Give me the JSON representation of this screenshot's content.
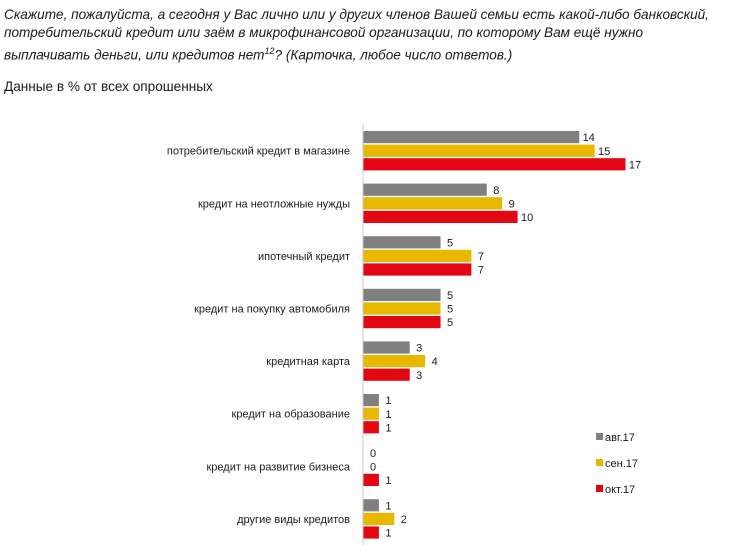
{
  "question": {
    "text": "Скажите, пожалуйста, а сегодня у Вас лично или у других членов Вашей семьи есть какой-либо банковский, потребительский кредит или заём в микрофинансовой организации, по которому Вам ещё нужно выплачивать деньги, или кредитов нет",
    "footnote": "12",
    "tail": "? (Карточка, любое число ответов.)"
  },
  "subtitle": "Данные в % от всех опрошенных",
  "chart_data": {
    "type": "bar",
    "orientation": "horizontal",
    "categories": [
      "потребительский кредит в магазине",
      "кредит на неотложные нужды",
      "ипотечный кредит",
      "кредит на покупку автомобиля",
      "кредитная карта",
      "кредит на образование",
      "кредит на развитие бизнеса",
      "другие виды кредитов"
    ],
    "series": [
      {
        "name": "авг.17",
        "color": "#808080",
        "values": [
          14,
          8,
          5,
          5,
          3,
          1,
          0,
          1
        ]
      },
      {
        "name": "сен.17",
        "color": "#E8B800",
        "values": [
          15,
          9,
          7,
          5,
          4,
          1,
          0,
          2
        ]
      },
      {
        "name": "окт.17",
        "color": "#E30613",
        "values": [
          17,
          10,
          7,
          5,
          3,
          1,
          1,
          1
        ]
      }
    ],
    "xlim": [
      0,
      17
    ],
    "grid": false,
    "legend": "bottom-right"
  }
}
